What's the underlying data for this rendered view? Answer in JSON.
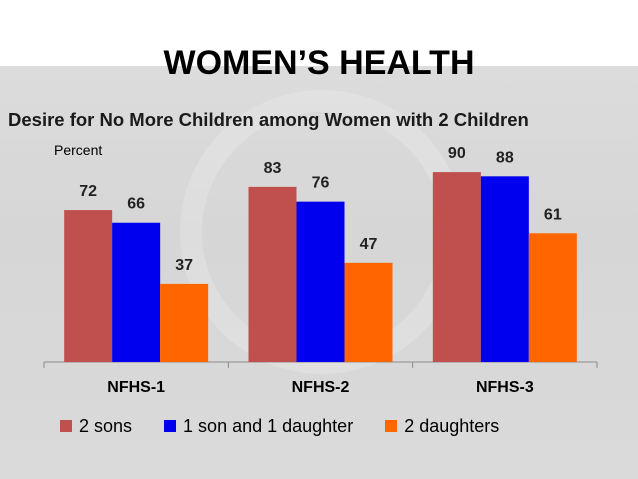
{
  "title": "WOMEN’S HEALTH",
  "subtitle": "Desire for No More Children among Women with 2 Children",
  "y_unit_label": "Percent",
  "chart_data": {
    "type": "bar",
    "title": "Desire for No More Children among Women with 2 Children",
    "ylabel": "Percent",
    "xlabel": "",
    "categories": [
      "NFHS-1",
      "NFHS-2",
      "NFHS-3"
    ],
    "series": [
      {
        "name": "2 sons",
        "color": "#c0504d",
        "values": [
          72,
          83,
          90
        ]
      },
      {
        "name": "1 son and 1 daughter",
        "color": "#0000ee",
        "values": [
          66,
          76,
          88
        ]
      },
      {
        "name": "2 daughters",
        "color": "#ff6600",
        "values": [
          37,
          47,
          61
        ]
      }
    ],
    "ylim": [
      0,
      100
    ],
    "grid": false,
    "legend_position": "bottom"
  }
}
